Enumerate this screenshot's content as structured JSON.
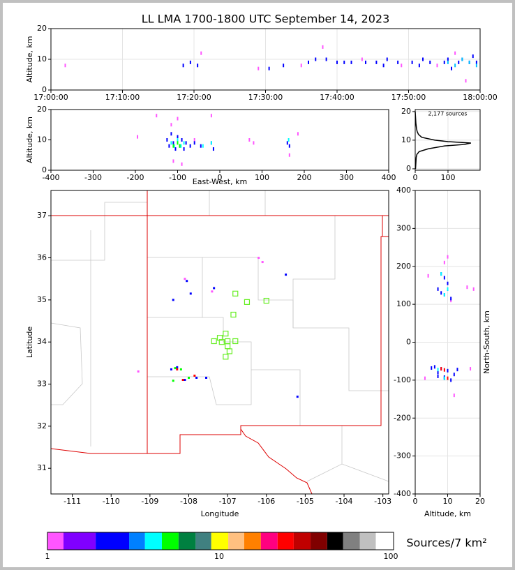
{
  "chart_data": [
    {
      "type": "scatter",
      "title": "LL LMA 1700-1800 UTC September 14, 2023",
      "ylabel": "Altitude, km",
      "xlim": [
        0,
        60
      ],
      "ylim": [
        0,
        20
      ],
      "grid": true,
      "xticks": [
        {
          "value": 0,
          "label": "17:00:00"
        },
        {
          "value": 10,
          "label": "17:10:00"
        },
        {
          "value": 20,
          "label": "17:20:00"
        },
        {
          "value": 30,
          "label": "17:30:00"
        },
        {
          "value": 40,
          "label": "17:40:00"
        },
        {
          "value": 50,
          "label": "17:50:00"
        },
        {
          "value": 60,
          "label": "18:00:00"
        }
      ],
      "yticks": [
        0,
        10,
        20
      ],
      "series": [
        {
          "color": "#ff55ff",
          "x": [
            2,
            21,
            29,
            35,
            38,
            43.5,
            49,
            54,
            56.5,
            58
          ],
          "values": [
            8,
            12,
            7,
            8,
            14,
            10,
            8,
            8,
            12,
            3
          ]
        },
        {
          "color": "#0000ff",
          "x": [
            18.5,
            19.5,
            20.5,
            30.5,
            32.5,
            36,
            37,
            38.5,
            40,
            41,
            42,
            44,
            45.5,
            46.5,
            47,
            48.5,
            50.5,
            51.5,
            52,
            53,
            55,
            55.5,
            56,
            57,
            57.5,
            58.5,
            59,
            59.5
          ],
          "values": [
            8,
            9,
            8,
            7,
            8,
            9,
            10,
            10,
            9,
            9,
            9,
            9,
            9,
            8,
            10,
            9,
            9,
            8,
            10,
            9,
            9,
            10,
            7,
            9,
            10,
            9,
            11,
            9
          ]
        },
        {
          "color": "#00c0ff",
          "x": [
            55.5,
            56.5,
            57.5,
            58.5,
            59.5
          ],
          "values": [
            9,
            8,
            10,
            9,
            8
          ]
        }
      ]
    },
    {
      "type": "scatter",
      "xlabel": "East-West, km",
      "ylabel": "Altitude, km",
      "xlim": [
        -400,
        400
      ],
      "ylim": [
        0,
        20
      ],
      "grid": false,
      "xticks": [
        -400,
        -300,
        -200,
        -100,
        0,
        100,
        200,
        300,
        400
      ],
      "yticks": [
        0,
        10,
        20
      ],
      "series": [
        {
          "color": "#ff55ff",
          "x": [
            -195,
            -150,
            -115,
            -110,
            -100,
            -90,
            -60,
            -20,
            70,
            80,
            165,
            185
          ],
          "values": [
            11,
            18,
            15,
            3,
            17,
            2,
            10,
            18,
            10,
            9,
            5,
            12
          ]
        },
        {
          "color": "#0000ff",
          "x": [
            -125,
            -120,
            -115,
            -110,
            -105,
            -100,
            -95,
            -90,
            -85,
            -80,
            -70,
            -60,
            -45,
            -20,
            -15,
            160,
            165
          ],
          "values": [
            10,
            8,
            12,
            9,
            7,
            11,
            8,
            10,
            7,
            9,
            8,
            9,
            8,
            9,
            7,
            9,
            8
          ]
        },
        {
          "color": "#00ffff",
          "x": [
            -115,
            -108,
            -100,
            -92,
            -85,
            -40,
            -20,
            163
          ],
          "values": [
            9,
            8,
            10,
            8,
            9,
            8,
            9,
            10
          ]
        },
        {
          "color": "#00ff00",
          "x": [
            -110,
            -100,
            -95
          ],
          "values": [
            8,
            9,
            8
          ]
        }
      ]
    },
    {
      "type": "line",
      "annotation": "2,177 sources",
      "xlim": [
        0,
        198
      ],
      "ylim": [
        -0.5,
        20.7
      ],
      "grid": true,
      "xticks": [
        0,
        100
      ],
      "yticks": [
        0,
        10,
        20
      ],
      "series": [
        {
          "color": "#000000",
          "x": [
            1,
            2,
            3,
            5,
            12,
            40,
            90,
            150,
            170,
            100,
            60,
            20,
            10,
            6,
            4,
            3,
            2,
            1,
            0
          ],
          "values": [
            0,
            2,
            4,
            5,
            6,
            7,
            8,
            8.5,
            9,
            9.5,
            10,
            11,
            12,
            13,
            14,
            15,
            16,
            18,
            20
          ]
        }
      ]
    },
    {
      "type": "scatter",
      "xlabel": "Longitude",
      "ylabel": "Latitude",
      "xlim": [
        -111.55,
        -102.85
      ],
      "ylim": [
        30.39,
        37.6
      ],
      "grid": false,
      "xticks": [
        -111,
        -110,
        -109,
        -108,
        -107,
        -106,
        -105,
        -104,
        -103
      ],
      "yticks": [
        31,
        32,
        33,
        34,
        35,
        36,
        37
      ],
      "series": [
        {
          "color": "#ff55ff",
          "x": [
            -107.4,
            -106.2,
            -106.1,
            -109.3,
            -108.1
          ],
          "values": [
            35.2,
            36.0,
            35.9,
            33.3,
            35.5
          ]
        },
        {
          "color": "#0000ff",
          "x": [
            -108.4,
            -108.05,
            -107.95,
            -107.35,
            -105.5,
            -105.2,
            -108.45,
            -108.3,
            -108.1,
            -107.8,
            -107.55
          ],
          "values": [
            35.0,
            35.45,
            35.15,
            35.28,
            35.6,
            32.7,
            33.35,
            33.4,
            33.1,
            33.15,
            33.15
          ]
        },
        {
          "color": "#00ff00",
          "x": [
            -108.35,
            -108.2,
            -108.4,
            -108.0
          ],
          "values": [
            33.38,
            33.35,
            33.08,
            33.15
          ]
        },
        {
          "color": "#ff0000",
          "x": [
            -108.3,
            -108.15,
            -107.85
          ],
          "values": [
            33.35,
            33.1,
            33.2
          ]
        },
        {
          "color": "#66ee22",
          "marker": "square-open",
          "x": [
            -106.8,
            -106.5,
            -106.0,
            -106.85,
            -107.05,
            -107.2,
            -107.35,
            -107.15,
            -107.0,
            -106.8,
            -107.0,
            -106.95,
            -107.05
          ],
          "values": [
            35.15,
            34.95,
            34.98,
            34.65,
            34.2,
            34.1,
            34.02,
            34.0,
            34.02,
            34.02,
            33.9,
            33.78,
            33.65
          ]
        }
      ]
    },
    {
      "type": "scatter",
      "xlabel": "Altitude, km",
      "ylabel": "North-South, km",
      "ylabel_side": "right",
      "xlim": [
        0,
        20
      ],
      "ylim": [
        -400,
        400
      ],
      "grid": true,
      "xticks": [
        0,
        10,
        20
      ],
      "yticks": [
        -400,
        -300,
        -200,
        -100,
        0,
        100,
        200,
        300,
        400
      ],
      "series": [
        {
          "color": "#ff55ff",
          "x": [
            10,
            9,
            4,
            16,
            18,
            3,
            12,
            17,
            11
          ],
          "values": [
            225,
            210,
            175,
            145,
            140,
            -95,
            -140,
            -70,
            110
          ]
        },
        {
          "color": "#0000ff",
          "x": [
            8,
            9,
            10,
            7,
            8,
            9,
            10,
            11,
            6,
            8,
            10,
            5,
            7,
            9,
            11,
            13,
            7,
            9,
            12
          ],
          "values": [
            180,
            170,
            155,
            140,
            130,
            125,
            140,
            115,
            -65,
            -70,
            -75,
            -68,
            -90,
            -95,
            -100,
            -72,
            -80,
            -92,
            -85
          ]
        },
        {
          "color": "#00ffff",
          "x": [
            8,
            10,
            9,
            7,
            9
          ],
          "values": [
            180,
            140,
            125,
            -72,
            -95
          ]
        },
        {
          "color": "#ff0000",
          "x": [
            8,
            9,
            10
          ],
          "values": [
            -70,
            -73,
            -95
          ]
        }
      ]
    },
    {
      "type": "colorbar",
      "label": "Sources/7 km²",
      "xscale": "log",
      "xlim": [
        1,
        100
      ],
      "xticks": [
        1,
        10,
        100
      ],
      "bins": [
        1,
        1.24,
        1.91,
        2.99,
        3.7,
        4.64,
        5.8,
        7.3,
        9.0,
        11.3,
        14,
        17.5,
        21.9,
        27.2,
        34.1,
        42.6,
        52.8,
        66.1,
        81.8,
        100
      ],
      "colors": [
        "#ff55ff",
        "#8000ff",
        "#0000ff",
        "#0080ff",
        "#00ffff",
        "#00ff00",
        "#008040",
        "#408080",
        "#ffff00",
        "#ffc080",
        "#ff8000",
        "#ff0080",
        "#ff0000",
        "#c00000",
        "#800000",
        "#000000",
        "#808080",
        "#c0c0c0",
        "#ffffff"
      ]
    }
  ]
}
